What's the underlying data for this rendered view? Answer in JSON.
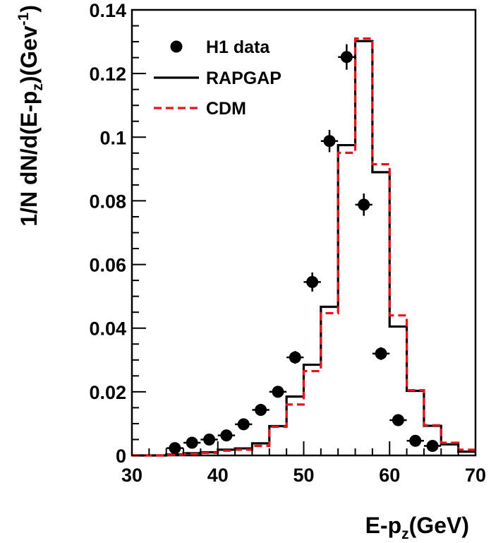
{
  "chart_data": {
    "type": "histogram",
    "xlabel": {
      "main": "E-p",
      "sub": "z",
      "after": "(GeV)"
    },
    "ylabel": {
      "pre": "1/N dN/d(E-p",
      "sub": "z",
      "mid": ")(Gev",
      "sup": "-1",
      "post": ")"
    },
    "xlim": [
      30,
      70
    ],
    "ylim": [
      0,
      0.14
    ],
    "x_ticks": [
      "30",
      "40",
      "50",
      "60",
      "70"
    ],
    "y_ticks": [
      "0",
      "0.02",
      "0.04",
      "0.06",
      "0.08",
      "0.1",
      "0.12",
      "0.14"
    ],
    "bin_edges": [
      30,
      32,
      34,
      36,
      38,
      40,
      42,
      44,
      46,
      48,
      50,
      52,
      54,
      56,
      58,
      60,
      62,
      64,
      66,
      68,
      70
    ],
    "series": [
      {
        "name": "H1 data",
        "style": "points",
        "color": "#000000",
        "x": [
          35,
          37,
          39,
          41,
          43,
          45,
          47,
          49,
          51,
          53,
          55,
          57,
          59,
          61,
          63,
          65
        ],
        "y": [
          0.0023,
          0.004,
          0.005,
          0.0063,
          0.0098,
          0.0143,
          0.02,
          0.0308,
          0.0545,
          0.0988,
          0.1252,
          0.0788,
          0.032,
          0.0111,
          0.0046,
          0.003
        ],
        "yerr": [
          0.0005,
          0.0006,
          0.0007,
          0.0008,
          0.001,
          0.0012,
          0.0015,
          0.002,
          0.003,
          0.0035,
          0.004,
          0.0035,
          0.002,
          0.001,
          0.0006,
          0.0005
        ]
      },
      {
        "name": "RAPGAP",
        "style": "solid",
        "color": "#000000",
        "values": [
          0.0,
          0.0,
          0.0003,
          0.0007,
          0.001,
          0.0018,
          0.0022,
          0.0038,
          0.0092,
          0.0185,
          0.0285,
          0.0467,
          0.0975,
          0.1302,
          0.089,
          0.0405,
          0.0203,
          0.0093,
          0.0035,
          0.0012
        ]
      },
      {
        "name": "CDM",
        "style": "dashed",
        "color": "#e8141c",
        "values": [
          0.0,
          0.0,
          0.0002,
          0.0005,
          0.0008,
          0.0015,
          0.0018,
          0.003,
          0.009,
          0.016,
          0.0265,
          0.0447,
          0.0951,
          0.131,
          0.0915,
          0.044,
          0.0205,
          0.0095,
          0.004,
          0.0018
        ]
      }
    ],
    "legend_position": "top-left"
  }
}
